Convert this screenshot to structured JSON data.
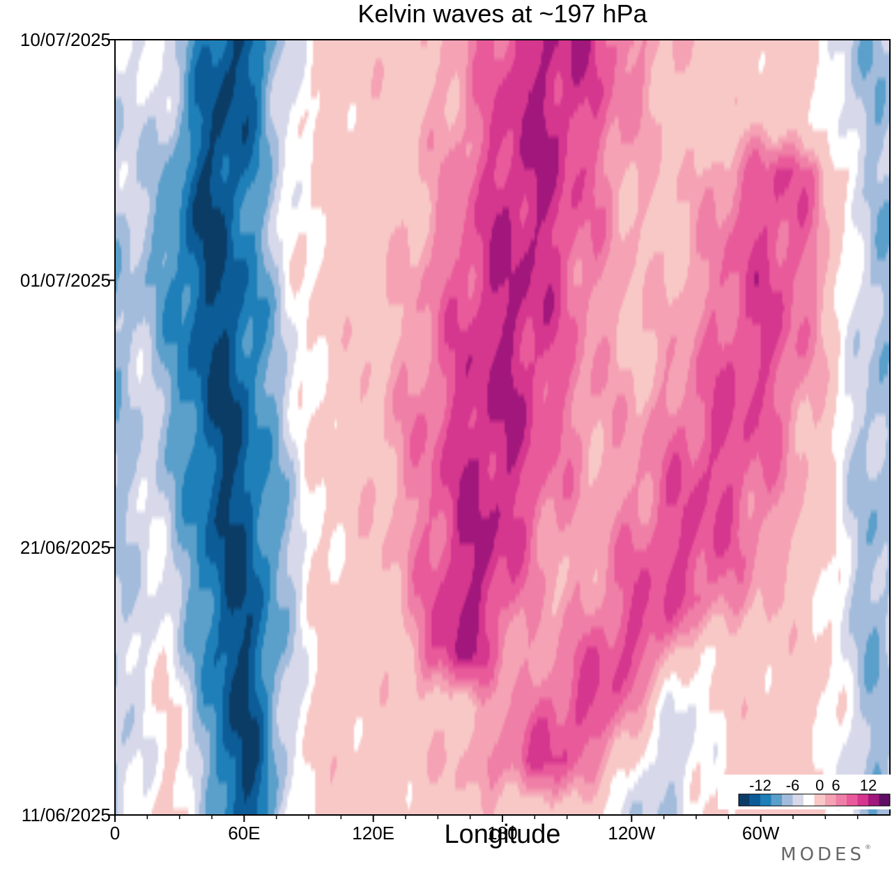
{
  "chart_data": {
    "type": "heatmap",
    "title": "Kelvin waves at ~197 hPa",
    "xlabel": "Longitude",
    "ylabel": "",
    "x_ticks": [
      "0",
      "60E",
      "120E",
      "180",
      "120W",
      "60W"
    ],
    "x_tick_values": [
      0,
      60,
      120,
      180,
      240,
      300
    ],
    "xlim": [
      0,
      360
    ],
    "y_ticks": [
      "10/07/2025",
      "01/07/2025",
      "21/06/2025",
      "11/06/2025"
    ],
    "y_tick_values": [
      29,
      20,
      10,
      0
    ],
    "ylim": [
      0,
      29
    ],
    "y_direction": "time increases upward",
    "colorbar": {
      "tick_labels": [
        "-12",
        "-6",
        "0",
        "6",
        "12"
      ],
      "levels": [
        -14,
        -12,
        -10,
        -8,
        -6,
        -4,
        -2,
        2,
        4,
        6,
        8,
        10,
        12,
        14
      ],
      "colors": [
        "#0b3c66",
        "#0c5c98",
        "#1f7fb8",
        "#5b9fcb",
        "#a3bcdc",
        "#d7d9ea",
        "#ffffff",
        "#f8c8c6",
        "#f5a2b5",
        "#ef7fa6",
        "#e95a9b",
        "#d5368e",
        "#a1177c",
        "#5e0f63"
      ]
    },
    "bands": [
      {
        "name": "negative band 60E",
        "anomaly": -10,
        "center_lon": [
          [
            0,
            60
          ],
          [
            10,
            55
          ],
          [
            18,
            48
          ],
          [
            22,
            45
          ],
          [
            29,
            55
          ]
        ],
        "half_width": [
          [
            0,
            18
          ],
          [
            10,
            28
          ],
          [
            20,
            30
          ],
          [
            29,
            25
          ]
        ],
        "peak_value": -14
      },
      {
        "name": "positive band central Pacific",
        "anomaly": 8,
        "center_lon": [
          [
            6,
            160
          ],
          [
            12,
            172
          ],
          [
            20,
            185
          ],
          [
            29,
            205
          ]
        ],
        "half_width": [
          [
            6,
            20
          ],
          [
            14,
            40
          ],
          [
            24,
            38
          ],
          [
            29,
            40
          ]
        ],
        "peak_value": 10
      },
      {
        "name": "positive band eastern Pacific",
        "anomaly": 7,
        "center_lon": [
          [
            2,
            200
          ],
          [
            8,
            255
          ],
          [
            12,
            275
          ],
          [
            18,
            300
          ],
          [
            24,
            310
          ]
        ],
        "half_width": [
          [
            2,
            35
          ],
          [
            10,
            40
          ],
          [
            24,
            30
          ]
        ],
        "peak_value": 8
      },
      {
        "name": "negative near 60W",
        "anomaly": -4,
        "center_lon": [
          [
            0,
            250
          ],
          [
            4,
            260
          ],
          [
            6,
            270
          ]
        ],
        "half_width": [
          [
            0,
            25
          ],
          [
            6,
            15
          ]
        ],
        "peak_value": -6
      },
      {
        "name": "negative east edge",
        "anomaly": -5,
        "center_lon": [
          [
            0,
            355
          ],
          [
            29,
            350
          ]
        ],
        "half_width": [
          [
            0,
            20
          ],
          [
            29,
            20
          ]
        ],
        "peak_value": -7
      }
    ]
  },
  "brand": {
    "text": "MODES",
    "mark": "®"
  }
}
